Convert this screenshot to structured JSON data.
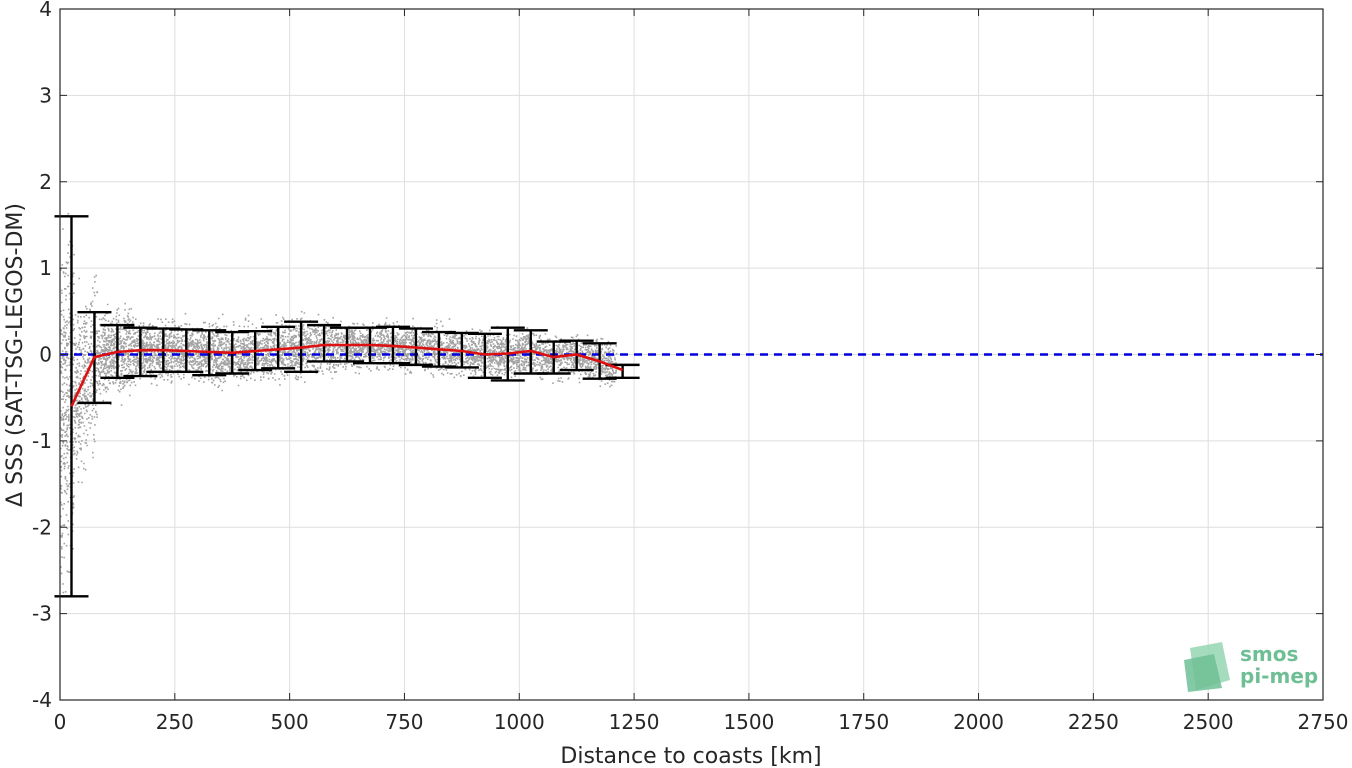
{
  "chart_data": {
    "type": "scatter",
    "xlabel": "Distance to coasts [km]",
    "ylabel": "Δ SSS (SAT-TSG-LEGOS-DM)",
    "xlim": [
      0,
      2750
    ],
    "ylim": [
      -4,
      4
    ],
    "xticks": [
      0,
      250,
      500,
      750,
      1000,
      1250,
      1500,
      1750,
      2000,
      2250,
      2500,
      2750
    ],
    "yticks": [
      -4,
      -3,
      -2,
      -1,
      0,
      1,
      2,
      3,
      4
    ],
    "grid": true,
    "reference_line": {
      "y": 0,
      "color": "#0000dd",
      "style": "dashed"
    },
    "scatter_color": "#8c8c8c",
    "scatter_extent_x": [
      0,
      1210
    ],
    "mean_line": {
      "color": "#dd1111",
      "x": [
        25,
        75,
        125,
        175,
        225,
        275,
        325,
        375,
        425,
        475,
        525,
        575,
        625,
        675,
        725,
        775,
        825,
        875,
        925,
        975,
        1025,
        1075,
        1125,
        1175,
        1225
      ],
      "y": [
        -0.6,
        -0.03,
        0.03,
        0.05,
        0.05,
        0.04,
        0.03,
        0.02,
        0.04,
        0.06,
        0.08,
        0.11,
        0.11,
        0.11,
        0.1,
        0.08,
        0.06,
        0.04,
        0.0,
        0.01,
        0.04,
        -0.03,
        0.0,
        -0.08,
        -0.18
      ]
    },
    "error_bars": {
      "color": "#000000",
      "x": [
        25,
        75,
        125,
        175,
        225,
        275,
        325,
        375,
        425,
        475,
        525,
        575,
        625,
        675,
        725,
        775,
        825,
        875,
        925,
        975,
        1025,
        1075,
        1125,
        1175,
        1225
      ],
      "low": [
        -2.8,
        -0.56,
        -0.27,
        -0.25,
        -0.2,
        -0.2,
        -0.24,
        -0.22,
        -0.18,
        -0.16,
        -0.2,
        -0.08,
        -0.08,
        -0.1,
        -0.1,
        -0.12,
        -0.14,
        -0.15,
        -0.27,
        -0.3,
        -0.22,
        -0.22,
        -0.18,
        -0.28,
        -0.27
      ],
      "high": [
        1.6,
        0.49,
        0.34,
        0.31,
        0.3,
        0.29,
        0.28,
        0.26,
        0.27,
        0.32,
        0.38,
        0.34,
        0.31,
        0.31,
        0.32,
        0.3,
        0.26,
        0.25,
        0.24,
        0.31,
        0.28,
        0.15,
        0.16,
        0.13,
        -0.12
      ]
    }
  },
  "logo": {
    "line1": "smos",
    "line2": "pi-mep",
    "color": "#6fbf95"
  }
}
